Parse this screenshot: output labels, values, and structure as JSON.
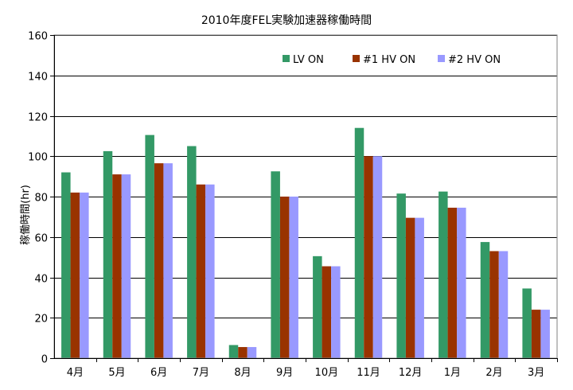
{
  "chart_data": {
    "type": "bar",
    "title": "2010年度FEL実験加速器稼働時間",
    "ylabel": "稼働時間(hr)",
    "xlabel": "",
    "ylim": [
      0,
      160
    ],
    "yticks": [
      0,
      20,
      40,
      60,
      80,
      100,
      120,
      140,
      160
    ],
    "grid": true,
    "legend_position": "top-right",
    "categories": [
      "4月",
      "5月",
      "6月",
      "7月",
      "8月",
      "9月",
      "10月",
      "11月",
      "12月",
      "1月",
      "2月",
      "3月"
    ],
    "series": [
      {
        "name": "LV ON",
        "color": "#339966",
        "values": [
          92.0,
          102.5,
          110.5,
          105.0,
          6.5,
          92.5,
          50.5,
          114.0,
          81.5,
          82.5,
          57.5,
          34.5
        ]
      },
      {
        "name": "#1  HV ON",
        "color": "#993300",
        "values": [
          82.0,
          91.0,
          96.5,
          86.0,
          5.5,
          80.0,
          45.5,
          100.0,
          69.5,
          74.5,
          53.0,
          24.0
        ]
      },
      {
        "name": "#2  HV ON",
        "color": "#9999ff",
        "values": [
          82.0,
          91.0,
          96.5,
          86.0,
          5.5,
          80.0,
          45.5,
          100.0,
          69.5,
          74.5,
          53.0,
          24.0
        ]
      }
    ]
  }
}
